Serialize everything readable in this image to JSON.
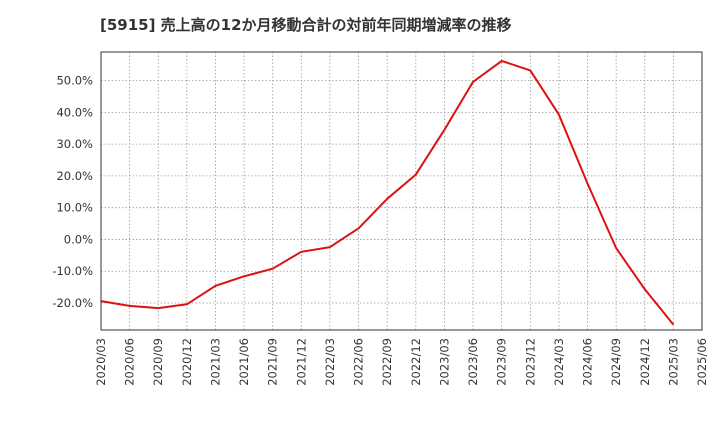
{
  "chart_data": {
    "type": "line",
    "title": "[5915]  売上高の12か月移動合計の対前年同期増減率の推移",
    "xlabel": "",
    "ylabel": "",
    "ylim": [
      -28.5,
      59
    ],
    "yticks": [
      -20,
      -10,
      0,
      10,
      20,
      30,
      40,
      50
    ],
    "ytick_labels": [
      "-20.0%",
      "-10.0%",
      "0.0%",
      "10.0%",
      "20.0%",
      "30.0%",
      "40.0%",
      "50.0%"
    ],
    "x_categories": [
      "2020/03",
      "2020/06",
      "2020/09",
      "2020/12",
      "2021/03",
      "2021/06",
      "2021/09",
      "2021/12",
      "2022/03",
      "2022/06",
      "2022/09",
      "2022/12",
      "2023/03",
      "2023/06",
      "2023/09",
      "2023/12",
      "2024/03",
      "2024/06",
      "2024/09",
      "2024/12",
      "2025/03",
      "2025/06"
    ],
    "grid": true,
    "series": [
      {
        "name": "増減率",
        "color": "#dd1111",
        "values": [
          -19.4,
          -20.9,
          -21.6,
          -20.4,
          -14.6,
          -11.6,
          -9.2,
          -3.9,
          -2.4,
          3.5,
          12.8,
          20.4,
          34.5,
          49.6,
          56.2,
          53.2,
          39.3,
          17.6,
          -2.7,
          -15.7,
          -26.8,
          null
        ]
      }
    ]
  }
}
